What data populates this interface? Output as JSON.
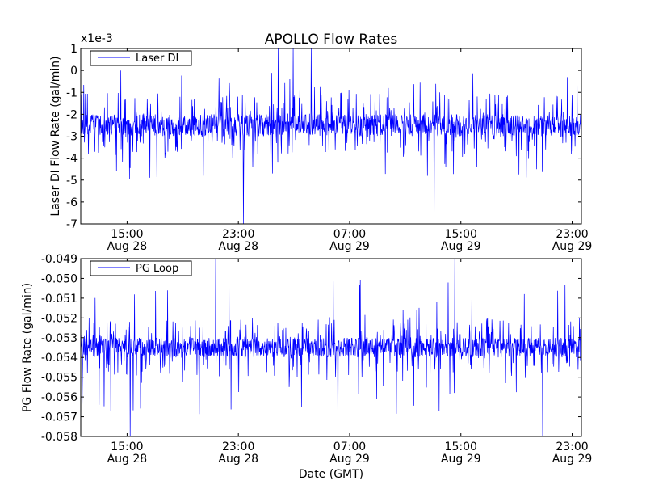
{
  "figure": {
    "title": "APOLLO Flow Rates",
    "xlabel": "Date (GMT)",
    "line_color": "#0000ff"
  },
  "chart_data": [
    {
      "type": "line",
      "ylabel": "Laser DI Flow Rate (gal/min)",
      "y_scale_label": "x1e-3",
      "ylim": [
        -7,
        1
      ],
      "yticks": [
        "1",
        "0",
        "-1",
        "-2",
        "-3",
        "-4",
        "-5",
        "-6",
        "-7"
      ],
      "xlim": [
        "2013-08-28 11:40",
        "2013-08-29 23:40"
      ],
      "xticks": [
        {
          "time": "15:00",
          "date": "Aug 28"
        },
        {
          "time": "23:00",
          "date": "Aug 28"
        },
        {
          "time": "07:00",
          "date": "Aug 29"
        },
        {
          "time": "15:00",
          "date": "Aug 29"
        },
        {
          "time": "23:00",
          "date": "Aug 29"
        }
      ],
      "legend": {
        "label": "Laser DI",
        "position": "top-left"
      },
      "series": [
        {
          "name": "Laser DI",
          "baseline": -2.5,
          "typical_range": [
            -3,
            -2
          ],
          "common_range": [
            -4,
            -1
          ],
          "rare_range": [
            -5,
            0
          ],
          "extremes": [
            -7,
            1
          ]
        }
      ]
    },
    {
      "type": "line",
      "ylabel": "PG Flow Rate (gal/min)",
      "ylim": [
        -0.058,
        -0.049
      ],
      "yticks": [
        "-0.049",
        "-0.050",
        "-0.051",
        "-0.052",
        "-0.053",
        "-0.054",
        "-0.055",
        "-0.056",
        "-0.057",
        "-0.058"
      ],
      "xlim": [
        "2013-08-28 11:40",
        "2013-08-29 23:40"
      ],
      "xticks": [
        {
          "time": "15:00",
          "date": "Aug 28"
        },
        {
          "time": "23:00",
          "date": "Aug 28"
        },
        {
          "time": "07:00",
          "date": "Aug 29"
        },
        {
          "time": "15:00",
          "date": "Aug 29"
        },
        {
          "time": "23:00",
          "date": "Aug 29"
        }
      ],
      "legend": {
        "label": "PG Loop",
        "position": "top-left"
      },
      "series": [
        {
          "name": "PG Loop",
          "baseline": -0.0535,
          "typical_range": [
            -0.054,
            -0.053
          ],
          "common_range": [
            -0.055,
            -0.052
          ],
          "rare_range": [
            -0.057,
            -0.05
          ],
          "extremes": [
            -0.058,
            -0.049
          ]
        }
      ]
    }
  ]
}
